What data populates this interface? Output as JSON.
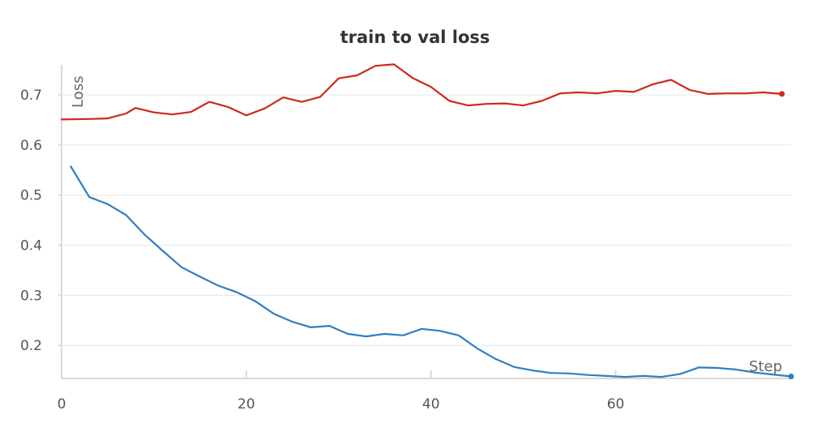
{
  "chart_data": {
    "type": "line",
    "title": "train to val loss",
    "xlabel": "Step",
    "ylabel": "Loss",
    "xlim": [
      0,
      79
    ],
    "ylim": [
      0.134,
      0.76
    ],
    "xticks": [
      0,
      20,
      40,
      60
    ],
    "yticks": [
      0.2,
      0.3,
      0.4,
      0.5,
      0.6,
      0.7
    ],
    "grid": true,
    "series": [
      {
        "color": "#cc2a1e",
        "x": [
          0,
          3,
          5,
          7,
          8,
          10,
          12,
          14,
          16,
          18,
          20,
          22,
          24,
          26,
          28,
          30,
          32,
          34,
          36,
          38,
          40,
          42,
          44,
          46,
          48,
          50,
          52,
          54,
          56,
          58,
          60,
          62,
          64,
          66,
          68,
          70,
          72,
          74,
          76,
          78
        ],
        "y": [
          0.651,
          0.652,
          0.653,
          0.663,
          0.674,
          0.665,
          0.661,
          0.666,
          0.686,
          0.676,
          0.659,
          0.673,
          0.695,
          0.686,
          0.696,
          0.733,
          0.739,
          0.758,
          0.761,
          0.734,
          0.716,
          0.688,
          0.679,
          0.682,
          0.683,
          0.679,
          0.688,
          0.703,
          0.705,
          0.703,
          0.708,
          0.706,
          0.721,
          0.73,
          0.71,
          0.702,
          0.703,
          0.703,
          0.705,
          0.702
        ]
      },
      {
        "color": "#2e7fc2",
        "x": [
          1,
          3,
          5,
          7,
          9,
          11,
          13,
          15,
          17,
          19,
          21,
          23,
          25,
          27,
          29,
          31,
          33,
          35,
          37,
          39,
          41,
          43,
          45,
          47,
          49,
          51,
          53,
          55,
          57,
          59,
          61,
          63,
          65,
          67,
          69,
          71,
          73,
          75,
          77,
          79
        ],
        "y": [
          0.557,
          0.496,
          0.482,
          0.46,
          0.421,
          0.388,
          0.356,
          0.337,
          0.319,
          0.306,
          0.288,
          0.263,
          0.247,
          0.236,
          0.239,
          0.223,
          0.218,
          0.223,
          0.22,
          0.233,
          0.229,
          0.22,
          0.194,
          0.173,
          0.157,
          0.15,
          0.145,
          0.144,
          0.141,
          0.139,
          0.137,
          0.139,
          0.137,
          0.143,
          0.156,
          0.155,
          0.152,
          0.146,
          0.142,
          0.138
        ]
      }
    ]
  }
}
